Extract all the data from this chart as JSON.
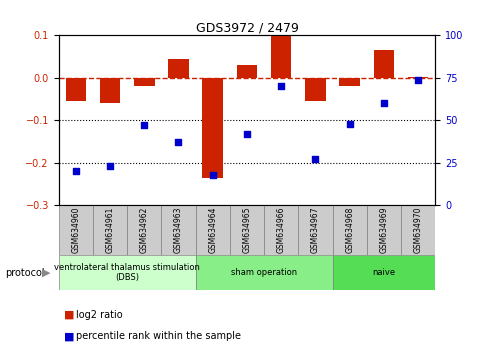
{
  "title": "GDS3972 / 2479",
  "samples": [
    "GSM634960",
    "GSM634961",
    "GSM634962",
    "GSM634963",
    "GSM634964",
    "GSM634965",
    "GSM634966",
    "GSM634967",
    "GSM634968",
    "GSM634969",
    "GSM634970"
  ],
  "log2_ratio": [
    -0.055,
    -0.06,
    -0.02,
    0.045,
    -0.235,
    0.03,
    0.1,
    -0.055,
    -0.02,
    0.065,
    0.002
  ],
  "percentile_rank": [
    20,
    23,
    47,
    37,
    18,
    42,
    70,
    27,
    48,
    60,
    74
  ],
  "bar_color": "#cc2200",
  "dot_color": "#0000cc",
  "ylim_left": [
    -0.3,
    0.1
  ],
  "ylim_right": [
    0,
    100
  ],
  "yticks_left": [
    -0.3,
    -0.2,
    -0.1,
    0.0,
    0.1
  ],
  "yticks_right": [
    0,
    25,
    50,
    75,
    100
  ],
  "hline_y": 0.0,
  "dotted_lines": [
    -0.1,
    -0.2
  ],
  "protocol_groups": [
    {
      "label": "ventrolateral thalamus stimulation\n(DBS)",
      "start": 0,
      "end": 3,
      "color": "#ccffcc"
    },
    {
      "label": "sham operation",
      "start": 4,
      "end": 7,
      "color": "#88ee88"
    },
    {
      "label": "naive",
      "start": 8,
      "end": 10,
      "color": "#55dd55"
    }
  ],
  "legend_bar_label": "log2 ratio",
  "legend_dot_label": "percentile rank within the sample",
  "protocol_label": "protocol"
}
